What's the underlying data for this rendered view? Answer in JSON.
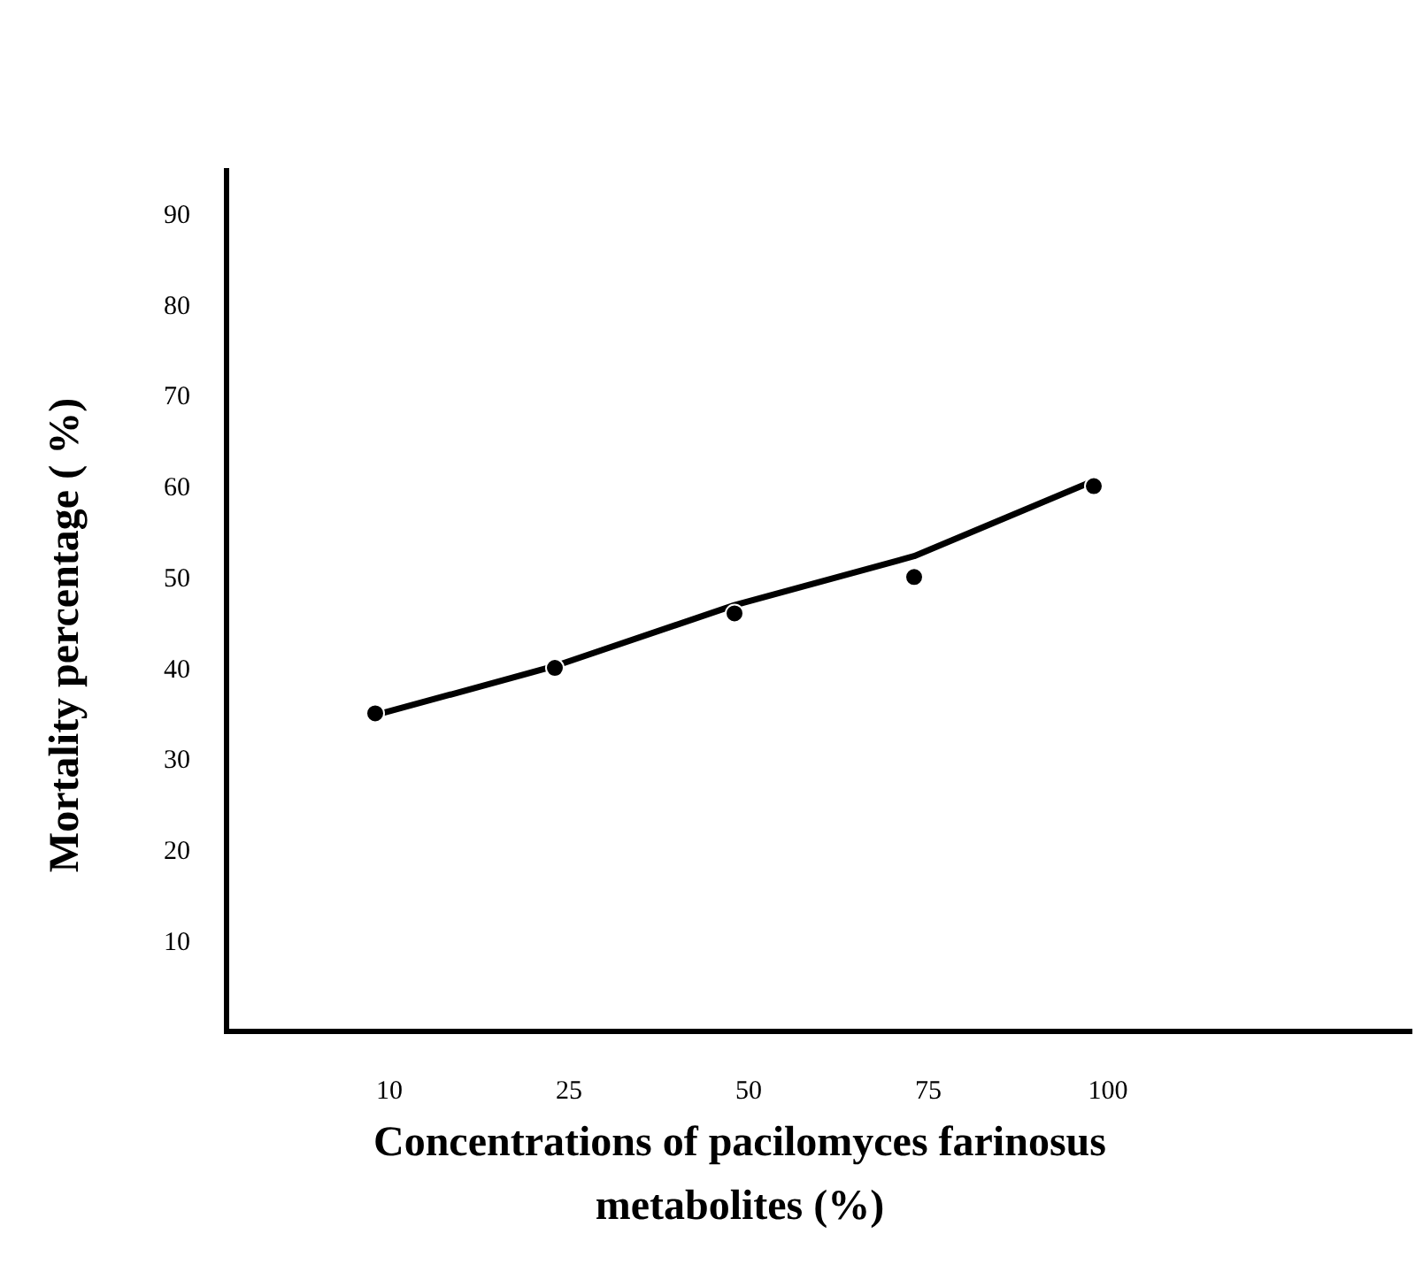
{
  "chart_data": {
    "type": "scatter",
    "xlabel": "Concentrations of pacilomyces farinosus metabolites (%)",
    "ylabel": "Mortality percentage ( %)",
    "categories": [
      "10",
      "25",
      "50",
      "75",
      "100"
    ],
    "ylim": [
      0,
      95
    ],
    "yticks": [
      10,
      20,
      30,
      40,
      50,
      60,
      70,
      80,
      90
    ],
    "grid": false,
    "series": [
      {
        "color": "#000000",
        "marker": "circle",
        "values": [
          35,
          40,
          46,
          50,
          60
        ]
      },
      {
        "type": "line",
        "color": "#000000",
        "line_style": "solid",
        "values": [
          34.8,
          40.2,
          46.9,
          52.3,
          60.6
        ]
      }
    ]
  }
}
